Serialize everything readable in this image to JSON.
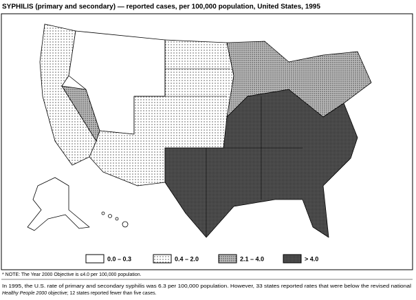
{
  "title": "SYPHILIS (primary and secondary) — reported cases, per 100,000 population, United States, 1995",
  "legend": [
    "0.0 – 0.3",
    "0.4 – 2.0",
    "2.1 – 4.0",
    "> 4.0"
  ],
  "note": "* NOTE: The Year 2000 Objective is ≤4.0 per 100,000 population.",
  "footer": {
    "line1": "In 1995, the U.S. rate of primary and secondary syphilis was 6.3 per 100,000 population. However, 33 states reported rates that were below the revised national",
    "italic": "Healthy People 2000",
    "rest": " objective; 12 states reported fewer than five cases."
  }
}
